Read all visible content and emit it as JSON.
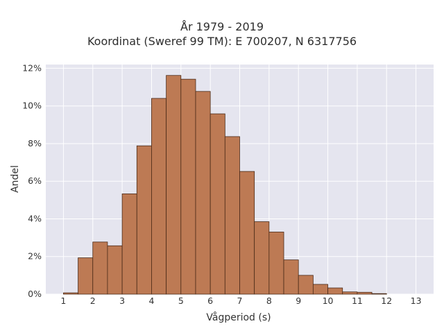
{
  "chart_data": {
    "type": "bar",
    "title": "År 1979 - 2019",
    "subtitle": "Koordinat (Sweref 99 TM): E 700207, N 6317756",
    "xlabel": "Vågperiod (s)",
    "ylabel": "Andel",
    "bin_width": 0.5,
    "bin_starts": [
      0.5,
      1,
      1.5,
      2,
      2.5,
      3,
      3.5,
      4,
      4.5,
      5,
      5.5,
      6,
      6.5,
      7,
      7.5,
      8,
      8.5,
      9,
      9.5,
      10,
      10.5,
      11,
      11.5,
      12,
      12.5,
      13
    ],
    "values": [
      0,
      0.07,
      1.93,
      2.77,
      2.57,
      5.33,
      7.88,
      10.4,
      11.62,
      11.42,
      10.77,
      9.58,
      8.37,
      6.52,
      3.85,
      3.3,
      1.82,
      1.0,
      0.52,
      0.33,
      0.12,
      0.1,
      0.03,
      0,
      0,
      0
    ],
    "xlim": [
      0.4,
      13.6
    ],
    "ylim": [
      0,
      12.2
    ],
    "xticks": [
      1,
      2,
      3,
      4,
      5,
      6,
      7,
      8,
      9,
      10,
      11,
      12,
      13
    ],
    "yticks": [
      0,
      2,
      4,
      6,
      8,
      10,
      12
    ],
    "ytick_labels": [
      "0%",
      "2%",
      "4%",
      "6%",
      "8%",
      "10%",
      "12%"
    ],
    "grid": true,
    "colors": {
      "bar_fill": "#bd7a54",
      "bar_stroke": "#4a2a18",
      "plot_background": "#e5e5ef",
      "grid": "#ffffff"
    }
  }
}
